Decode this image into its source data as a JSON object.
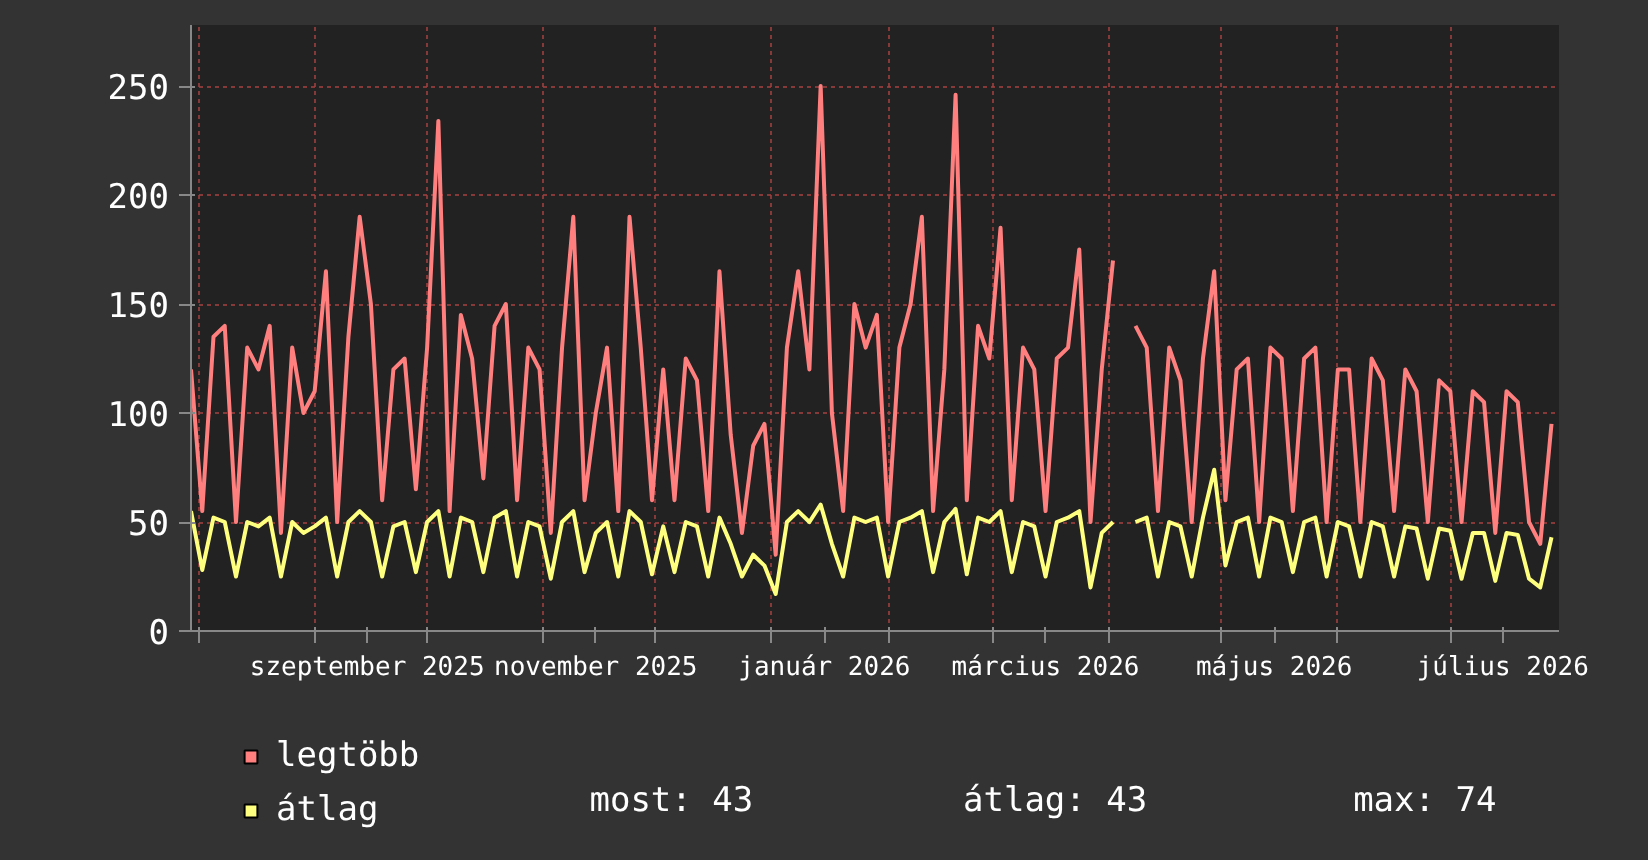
{
  "chart_data": {
    "type": "line",
    "x": [
      "2025-07-30",
      "2025-08-02",
      "2025-08-05",
      "2025-08-08",
      "2025-08-11",
      "2025-08-14",
      "2025-08-17",
      "2025-08-20",
      "2025-08-23",
      "2025-08-26",
      "2025-08-29",
      "2025-09-01",
      "2025-09-04",
      "2025-09-07",
      "2025-09-10",
      "2025-09-13",
      "2025-09-16",
      "2025-09-19",
      "2025-09-22",
      "2025-09-25",
      "2025-09-28",
      "2025-10-01",
      "2025-10-04",
      "2025-10-07",
      "2025-10-10",
      "2025-10-13",
      "2025-10-16",
      "2025-10-19",
      "2025-10-22",
      "2025-10-25",
      "2025-10-28",
      "2025-10-31",
      "2025-11-03",
      "2025-11-06",
      "2025-11-09",
      "2025-11-12",
      "2025-11-15",
      "2025-11-18",
      "2025-11-21",
      "2025-11-24",
      "2025-11-27",
      "2025-11-30",
      "2025-12-03",
      "2025-12-06",
      "2025-12-09",
      "2025-12-12",
      "2025-12-15",
      "2025-12-18",
      "2025-12-21",
      "2025-12-24",
      "2025-12-27",
      "2025-12-30",
      "2026-01-02",
      "2026-01-05",
      "2026-01-08",
      "2026-01-11",
      "2026-01-14",
      "2026-01-17",
      "2026-01-20",
      "2026-01-23",
      "2026-01-26",
      "2026-01-29",
      "2026-02-01",
      "2026-02-04",
      "2026-02-07",
      "2026-02-10",
      "2026-02-13",
      "2026-02-16",
      "2026-02-19",
      "2026-02-22",
      "2026-02-25",
      "2026-02-28",
      "2026-03-03",
      "2026-03-06",
      "2026-03-09",
      "2026-03-12",
      "2026-03-15",
      "2026-03-18",
      "2026-03-21",
      "2026-03-24",
      "2026-03-27",
      "2026-03-30",
      "2026-04-02",
      "2026-04-05",
      "2026-04-08",
      "2026-04-11",
      "2026-04-14",
      "2026-04-17",
      "2026-04-20",
      "2026-04-23",
      "2026-04-26",
      "2026-04-29",
      "2026-05-02",
      "2026-05-05",
      "2026-05-08",
      "2026-05-11",
      "2026-05-14",
      "2026-05-17",
      "2026-05-20",
      "2026-05-23",
      "2026-05-26",
      "2026-05-29",
      "2026-06-01",
      "2026-06-04",
      "2026-06-07",
      "2026-06-10",
      "2026-06-13",
      "2026-06-16",
      "2026-06-19",
      "2026-06-22",
      "2026-06-25",
      "2026-06-28",
      "2026-07-01",
      "2026-07-04",
      "2026-07-07",
      "2026-07-10",
      "2026-07-13",
      "2026-07-16",
      "2026-07-19",
      "2026-07-22",
      "2026-07-25",
      "2026-07-28"
    ],
    "series": [
      {
        "name": "legtöbb",
        "color": "#ff7f7f",
        "values": [
          120,
          55,
          135,
          140,
          50,
          130,
          120,
          140,
          45,
          130,
          100,
          110,
          165,
          50,
          135,
          190,
          150,
          60,
          120,
          125,
          65,
          130,
          234,
          55,
          145,
          125,
          70,
          140,
          150,
          60,
          130,
          120,
          45,
          130,
          190,
          60,
          100,
          130,
          55,
          190,
          130,
          60,
          120,
          60,
          125,
          115,
          55,
          165,
          90,
          45,
          85,
          95,
          35,
          130,
          165,
          120,
          250,
          100,
          55,
          150,
          130,
          145,
          50,
          130,
          150,
          190,
          55,
          120,
          246,
          60,
          140,
          125,
          185,
          60,
          130,
          120,
          55,
          125,
          130,
          175,
          50,
          120,
          170,
          null,
          140,
          130,
          55,
          130,
          115,
          50,
          125,
          165,
          60,
          120,
          125,
          50,
          130,
          125,
          55,
          125,
          130,
          50,
          120,
          120,
          50,
          125,
          115,
          55,
          120,
          110,
          50,
          115,
          110,
          50,
          110,
          105,
          45,
          110,
          105,
          50,
          40,
          95
        ]
      },
      {
        "name": "átlag",
        "color": "#ffff7f",
        "values": [
          55,
          28,
          52,
          50,
          25,
          50,
          48,
          52,
          25,
          50,
          45,
          48,
          52,
          25,
          50,
          55,
          50,
          25,
          48,
          50,
          27,
          50,
          55,
          25,
          52,
          50,
          27,
          52,
          55,
          25,
          50,
          48,
          24,
          50,
          55,
          27,
          45,
          50,
          25,
          55,
          50,
          26,
          48,
          27,
          50,
          48,
          25,
          52,
          40,
          25,
          35,
          30,
          17,
          50,
          55,
          50,
          58,
          40,
          25,
          52,
          50,
          52,
          25,
          50,
          52,
          55,
          27,
          50,
          56,
          26,
          52,
          50,
          55,
          27,
          50,
          48,
          25,
          50,
          52,
          55,
          20,
          45,
          50,
          null,
          50,
          52,
          25,
          50,
          48,
          25,
          52,
          74,
          30,
          50,
          52,
          25,
          52,
          50,
          27,
          50,
          52,
          25,
          50,
          48,
          25,
          50,
          48,
          25,
          48,
          47,
          24,
          47,
          46,
          24,
          45,
          45,
          23,
          45,
          44,
          24,
          20,
          43
        ]
      }
    ],
    "xlim": [
      "2025-07-30",
      "2026-07-30"
    ],
    "xticks": [
      {
        "value": "2025-08-01",
        "label": null
      },
      {
        "value": "2025-09-01",
        "label": null
      },
      {
        "value": "2025-10-01",
        "label": null
      },
      {
        "value": "2025-11-01",
        "label": null
      },
      {
        "value": "2025-12-01",
        "label": null
      },
      {
        "value": "2026-01-01",
        "label": null
      },
      {
        "value": "2026-02-01",
        "label": null
      },
      {
        "value": "2026-03-01",
        "label": null
      },
      {
        "value": "2026-04-01",
        "label": null
      },
      {
        "value": "2026-05-01",
        "label": null
      },
      {
        "value": "2026-06-01",
        "label": null
      },
      {
        "value": "2026-07-01",
        "label": null
      },
      {
        "value": "2025-09-15",
        "label": "szeptember 2025"
      },
      {
        "value": "2025-11-15",
        "label": "november 2025"
      },
      {
        "value": "2026-01-15",
        "label": "január 2026"
      },
      {
        "value": "2026-03-15",
        "label": "március 2026"
      },
      {
        "value": "2026-05-15",
        "label": "május 2026"
      },
      {
        "value": "2026-07-15",
        "label": "július 2026"
      }
    ],
    "ylim": [
      0,
      278
    ],
    "yticks": [
      0,
      50,
      100,
      150,
      200,
      250
    ],
    "grid": true,
    "legend": "bottom",
    "annotations": [
      "most: 43",
      "átlag: 43",
      "max: 74"
    ]
  }
}
